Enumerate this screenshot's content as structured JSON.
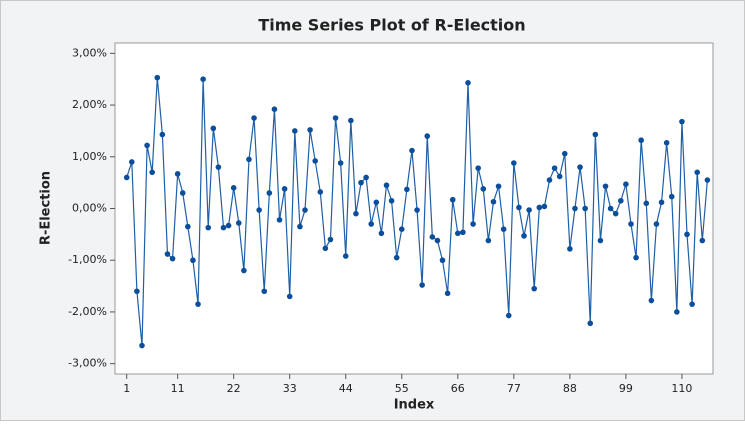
{
  "chart_data": {
    "type": "line",
    "title": "Time Series Plot of R-Election",
    "x_label": "Index",
    "y_label": "R-Election",
    "x": [
      1,
      2,
      3,
      4,
      5,
      6,
      7,
      8,
      9,
      10,
      11,
      12,
      13,
      14,
      15,
      16,
      17,
      18,
      19,
      20,
      21,
      22,
      23,
      24,
      25,
      26,
      27,
      28,
      29,
      30,
      31,
      32,
      33,
      34,
      35,
      36,
      37,
      38,
      39,
      40,
      41,
      42,
      43,
      44,
      45,
      46,
      47,
      48,
      49,
      50,
      51,
      52,
      53,
      54,
      55,
      56,
      57,
      58,
      59,
      60,
      61,
      62,
      63,
      64,
      65,
      66,
      67,
      68,
      69,
      70,
      71,
      72,
      73,
      74,
      75,
      76,
      77,
      78,
      79,
      80,
      81,
      82,
      83,
      84,
      85,
      86,
      87,
      88,
      89,
      90,
      91,
      92,
      93,
      94,
      95,
      96,
      97,
      98,
      99,
      100,
      101,
      102,
      103,
      104,
      105,
      106,
      107,
      108,
      109,
      110,
      111,
      112,
      113,
      114,
      115
    ],
    "series": [
      {
        "name": "R-Election",
        "color": "#1f5fa8",
        "values": [
          0.6,
          0.9,
          -1.6,
          -2.65,
          1.22,
          0.7,
          2.53,
          1.43,
          -0.88,
          -0.97,
          0.67,
          0.3,
          -0.35,
          -1.0,
          -1.85,
          2.5,
          -0.37,
          1.55,
          0.8,
          -0.37,
          -0.33,
          0.4,
          -0.28,
          -1.2,
          0.95,
          1.75,
          -0.03,
          -1.6,
          0.3,
          1.92,
          -0.22,
          0.38,
          -1.7,
          1.5,
          -0.35,
          -0.03,
          1.52,
          0.92,
          0.32,
          -0.77,
          -0.6,
          1.75,
          0.88,
          -0.92,
          1.7,
          -0.1,
          0.5,
          0.6,
          -0.3,
          0.12,
          -0.48,
          0.45,
          0.15,
          -0.95,
          -0.4,
          0.37,
          1.12,
          -0.03,
          -1.48,
          1.4,
          -0.55,
          -0.62,
          -1.0,
          -1.64,
          0.17,
          -0.48,
          -0.46,
          2.43,
          -0.3,
          0.78,
          0.38,
          -0.62,
          0.13,
          0.43,
          -0.4,
          -2.07,
          0.88,
          0.02,
          -0.53,
          -0.03,
          -1.55,
          0.02,
          0.04,
          0.55,
          0.78,
          0.62,
          1.06,
          -0.78,
          0.0,
          0.8,
          0.0,
          -2.22,
          1.43,
          -0.62,
          0.43,
          0.0,
          -0.1,
          0.15,
          0.47,
          -0.3,
          -0.95,
          1.32,
          0.1,
          -1.78,
          -0.3,
          0.12,
          1.27,
          0.23,
          -2.0,
          1.68,
          -0.5,
          -1.85,
          0.7,
          -0.62,
          0.55
        ]
      }
    ],
    "xlim": [
      -1.3,
      116.1
    ],
    "xticks": [
      1,
      11,
      22,
      33,
      44,
      55,
      66,
      77,
      88,
      99,
      110
    ],
    "ylim": [
      -3.2,
      3.2
    ],
    "yticks": [
      {
        "value": -3,
        "label": "-3,00%"
      },
      {
        "value": -2,
        "label": "-2,00%"
      },
      {
        "value": -1,
        "label": "-1,00%"
      },
      {
        "value": 0,
        "label": "0,00%"
      },
      {
        "value": 1,
        "label": "1,00%"
      },
      {
        "value": 2,
        "label": "2,00%"
      },
      {
        "value": 3,
        "label": "3,00%"
      }
    ],
    "marker_color": "#0b4f9c"
  }
}
